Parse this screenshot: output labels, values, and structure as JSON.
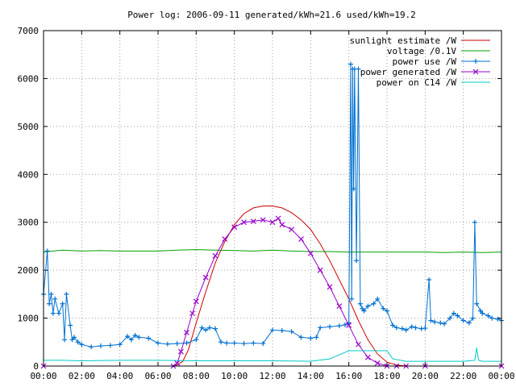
{
  "chart_data": {
    "type": "line",
    "title": "Power log: 2006-09-11 generated/kWh=21.6 used/kWh=19.2",
    "xlabel": "",
    "ylabel": "",
    "xlim": [
      0,
      24
    ],
    "ylim": [
      0,
      7000
    ],
    "y_ticks": [
      0,
      1000,
      2000,
      3000,
      4000,
      5000,
      6000,
      7000
    ],
    "x_ticks": [
      0,
      2,
      4,
      6,
      8,
      10,
      12,
      14,
      16,
      18,
      20,
      22,
      24
    ],
    "x_tick_labels": [
      "00:00",
      "02:00",
      "04:00",
      "06:00",
      "08:00",
      "10:00",
      "12:00",
      "14:00",
      "16:00",
      "18:00",
      "20:00",
      "22:00",
      "00:00"
    ],
    "grid": true,
    "legend_position": "top-right",
    "series": [
      {
        "name": "sunlight estimate /W",
        "color": "#cc0000",
        "marker": "none",
        "x": [
          0,
          6.9,
          7.3,
          7.6,
          8.0,
          8.5,
          9.0,
          9.5,
          10.0,
          10.5,
          11.0,
          11.5,
          12.0,
          12.5,
          13.0,
          13.5,
          14.0,
          14.5,
          15.0,
          15.5,
          16.0,
          16.5,
          17.0,
          17.5,
          18.0,
          18.5,
          19.0,
          24
        ],
        "y": [
          0,
          0,
          100,
          350,
          900,
          1550,
          2150,
          2600,
          2950,
          3180,
          3300,
          3340,
          3340,
          3300,
          3200,
          3050,
          2850,
          2550,
          2200,
          1800,
          1400,
          950,
          550,
          250,
          80,
          20,
          0,
          0
        ]
      },
      {
        "name": "voltage /0.1V",
        "color": "#00a000",
        "marker": "none",
        "x": [
          0,
          0.5,
          1,
          2,
          3,
          4,
          5,
          6,
          7,
          8,
          9,
          10,
          11,
          12,
          13,
          14,
          15,
          16,
          17,
          18,
          19,
          20,
          21,
          22,
          23,
          24
        ],
        "y": [
          2380,
          2400,
          2420,
          2400,
          2410,
          2400,
          2400,
          2400,
          2420,
          2430,
          2420,
          2410,
          2400,
          2420,
          2400,
          2390,
          2390,
          2380,
          2380,
          2380,
          2380,
          2380,
          2370,
          2380,
          2370,
          2380
        ]
      },
      {
        "name": "power use /W",
        "color": "#0070d0",
        "marker": "plus",
        "x": [
          0,
          0.2,
          0.3,
          0.4,
          0.5,
          0.6,
          0.8,
          1.0,
          1.1,
          1.2,
          1.4,
          1.5,
          1.6,
          1.8,
          2.0,
          2.5,
          3.0,
          3.5,
          4.0,
          4.4,
          4.6,
          4.8,
          5.0,
          5.5,
          6.0,
          6.5,
          7.0,
          7.5,
          8.0,
          8.3,
          8.5,
          8.7,
          9.0,
          9.3,
          9.6,
          10.0,
          10.5,
          11.0,
          11.5,
          12.0,
          12.5,
          13.0,
          13.5,
          14.0,
          14.3,
          14.5,
          15.0,
          15.5,
          15.8,
          16.0,
          16.1,
          16.15,
          16.2,
          16.25,
          16.3,
          16.4,
          16.5,
          16.6,
          16.7,
          16.8,
          17.0,
          17.3,
          17.5,
          17.8,
          18.0,
          18.3,
          18.5,
          18.8,
          19.0,
          19.3,
          19.5,
          19.8,
          20.0,
          20.2,
          20.3,
          20.5,
          20.8,
          21.0,
          21.3,
          21.5,
          21.7,
          22.0,
          22.3,
          22.5,
          22.6,
          22.7,
          22.9,
          23.0,
          23.3,
          23.5,
          23.8,
          24
        ],
        "y": [
          1500,
          2400,
          1300,
          1500,
          1100,
          1400,
          1100,
          1300,
          550,
          1500,
          850,
          550,
          600,
          500,
          450,
          400,
          420,
          430,
          450,
          620,
          550,
          640,
          600,
          580,
          480,
          460,
          470,
          480,
          550,
          800,
          750,
          800,
          780,
          500,
          480,
          480,
          470,
          480,
          470,
          750,
          740,
          720,
          600,
          580,
          600,
          800,
          820,
          840,
          860,
          900,
          6300,
          1400,
          6200,
          3700,
          6200,
          2200,
          6200,
          1300,
          1200,
          1150,
          1250,
          1300,
          1400,
          1200,
          1150,
          850,
          800,
          780,
          750,
          820,
          800,
          780,
          790,
          1800,
          950,
          920,
          900,
          880,
          1000,
          1100,
          1050,
          950,
          900,
          1000,
          3000,
          1300,
          1150,
          1100,
          1050,
          1000,
          980,
          950
        ]
      },
      {
        "name": "power generated /W",
        "color": "#9900cc",
        "marker": "cross",
        "x": [
          0,
          6.8,
          7.0,
          7.2,
          7.5,
          7.8,
          8.0,
          8.5,
          9.0,
          9.5,
          10.0,
          10.5,
          11.0,
          11.5,
          12.0,
          12.3,
          12.5,
          13.0,
          13.5,
          14.0,
          14.5,
          15.0,
          15.5,
          16.0,
          16.5,
          17.0,
          17.5,
          18.0,
          18.5,
          19.0,
          20.0,
          24
        ],
        "y": [
          0,
          0,
          60,
          300,
          700,
          1100,
          1350,
          1850,
          2300,
          2650,
          2900,
          3000,
          3020,
          3050,
          3000,
          3080,
          2950,
          2850,
          2650,
          2350,
          2000,
          1650,
          1250,
          850,
          450,
          180,
          60,
          0,
          0,
          0,
          0,
          0
        ]
      },
      {
        "name": "power on C14 /W",
        "color": "#00c8c8",
        "marker": "none",
        "x": [
          0,
          1,
          2,
          4,
          6,
          8,
          10,
          12,
          14,
          15,
          15.3,
          15.6,
          16.0,
          17.0,
          18.0,
          18.3,
          19.0,
          20.0,
          21.0,
          22.0,
          22.6,
          22.7,
          22.8,
          23.0,
          24
        ],
        "y": [
          120,
          120,
          110,
          120,
          120,
          110,
          110,
          110,
          100,
          150,
          200,
          250,
          320,
          320,
          320,
          150,
          100,
          100,
          100,
          100,
          120,
          380,
          120,
          100,
          100
        ]
      }
    ]
  }
}
